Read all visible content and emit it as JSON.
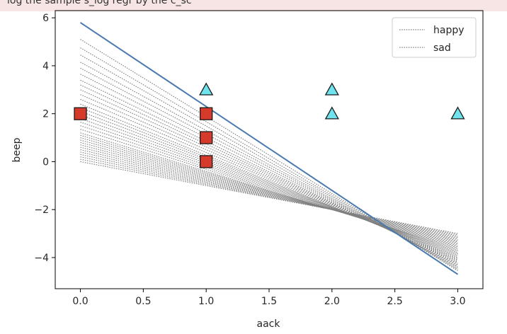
{
  "header_fragment": "log the sample s_log regr by the c_sc",
  "chart_data": {
    "type": "line",
    "xlabel": "aack",
    "ylabel": "beep",
    "xlim": [
      -0.2,
      3.2
    ],
    "ylim": [
      -5.3,
      6.3
    ],
    "x_ticks": [
      0.0,
      0.5,
      1.0,
      1.5,
      2.0,
      2.5,
      3.0
    ],
    "x_tick_labels": [
      "0.0",
      "0.5",
      "1.0",
      "1.5",
      "2.0",
      "2.5",
      "3.0"
    ],
    "y_ticks": [
      -4,
      -2,
      0,
      2,
      4,
      6
    ],
    "y_tick_labels": [
      "−4",
      "−2",
      "0",
      "2",
      "4",
      "6"
    ],
    "grid": false,
    "legend": {
      "position": "top-right",
      "entries": [
        {
          "label": "happy",
          "style": "dotted",
          "color": "#808080"
        },
        {
          "label": "sad",
          "style": "dotted",
          "color": "#808080"
        }
      ]
    },
    "decision_lines": {
      "color": "#7f7f7f",
      "style": "dotted",
      "x_range": [
        0,
        3
      ],
      "lines": [
        {
          "y0": 0.0,
          "y3": -3.0
        },
        {
          "y0": 0.1,
          "y3": -3.05
        },
        {
          "y0": 0.2,
          "y3": -3.1
        },
        {
          "y0": 0.3,
          "y3": -3.15
        },
        {
          "y0": 0.4,
          "y3": -3.2
        },
        {
          "y0": 0.5,
          "y3": -3.25
        },
        {
          "y0": 0.6,
          "y3": -3.3
        },
        {
          "y0": 0.7,
          "y3": -3.35
        },
        {
          "y0": 0.8,
          "y3": -3.4
        },
        {
          "y0": 0.9,
          "y3": -3.45
        },
        {
          "y0": 1.0,
          "y3": -3.5
        },
        {
          "y0": 1.1,
          "y3": -3.55
        },
        {
          "y0": 1.2,
          "y3": -3.6
        },
        {
          "y0": 1.35,
          "y3": -3.65
        },
        {
          "y0": 1.5,
          "y3": -3.7
        },
        {
          "y0": 1.65,
          "y3": -3.75
        },
        {
          "y0": 1.8,
          "y3": -3.8
        },
        {
          "y0": 1.95,
          "y3": -3.85
        },
        {
          "y0": 2.1,
          "y3": -3.9
        },
        {
          "y0": 2.25,
          "y3": -3.95
        },
        {
          "y0": 2.4,
          "y3": -4.0
        },
        {
          "y0": 2.6,
          "y3": -4.05
        },
        {
          "y0": 2.8,
          "y3": -4.1
        },
        {
          "y0": 3.0,
          "y3": -4.15
        },
        {
          "y0": 3.2,
          "y3": -4.2
        },
        {
          "y0": 3.4,
          "y3": -4.25
        },
        {
          "y0": 3.65,
          "y3": -4.3
        },
        {
          "y0": 3.9,
          "y3": -4.35
        },
        {
          "y0": 4.15,
          "y3": -4.4
        },
        {
          "y0": 4.45,
          "y3": -4.45
        },
        {
          "y0": 4.75,
          "y3": -4.5
        },
        {
          "y0": 5.1,
          "y3": -4.55
        }
      ]
    },
    "final_line": {
      "color": "#4a7ab0",
      "x": [
        0,
        3
      ],
      "y": [
        5.8,
        -4.7
      ]
    },
    "series": [
      {
        "marker": "triangle",
        "fill": "#6fe4ee",
        "edge": "#1a1a1a",
        "points": [
          [
            1,
            3
          ],
          [
            2,
            3
          ],
          [
            2,
            2
          ],
          [
            3,
            2
          ]
        ]
      },
      {
        "marker": "square",
        "fill": "#d63a2a",
        "edge": "#1a1a1a",
        "points": [
          [
            0,
            2
          ],
          [
            1,
            2
          ],
          [
            1,
            1
          ],
          [
            1,
            0
          ]
        ]
      }
    ]
  }
}
